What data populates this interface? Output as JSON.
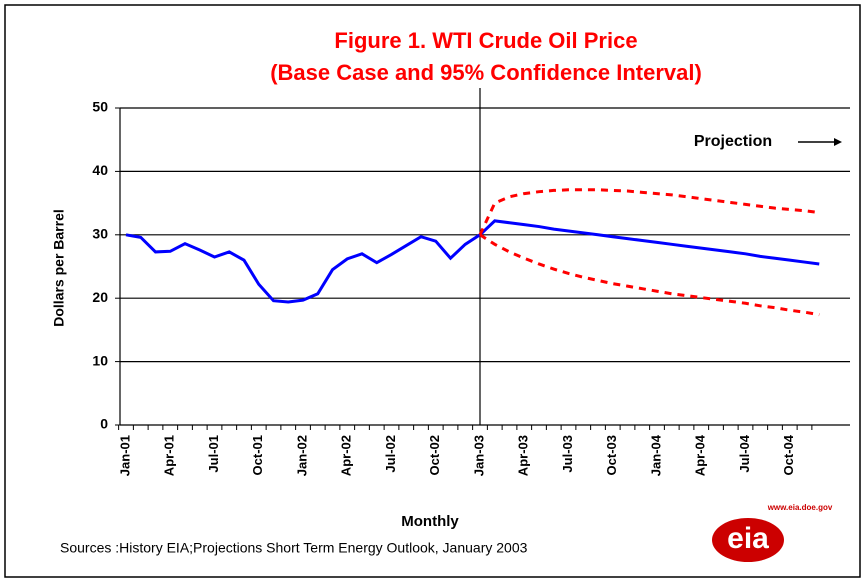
{
  "chart_data": {
    "type": "line",
    "title": "Figure 1. WTI Crude Oil Price",
    "subtitle": "(Base Case and 95% Confidence Interval)",
    "y_label": "Dollars per Barrel",
    "x_label": "Monthly",
    "annotation": "Projection",
    "source": "Sources :History EIA;Projections  Short Term Energy Outlook, January 2003",
    "logo_url": "www.eia.doe.gov",
    "logo": "eia",
    "categories": [
      "Jan-01",
      null,
      null,
      "Apr-01",
      null,
      null,
      "Jul-01",
      null,
      null,
      "Oct-01",
      null,
      null,
      "Jan-02",
      null,
      null,
      "Apr-02",
      null,
      null,
      "Jul-02",
      null,
      null,
      "Oct-02",
      null,
      null,
      "Jan-03",
      null,
      null,
      "Apr-03",
      null,
      null,
      "Jul-03",
      null,
      null,
      "Oct-03",
      null,
      null,
      "Jan-04",
      null,
      null,
      "Apr-04",
      null,
      null,
      "Jul-04",
      null,
      null,
      "Oct-04",
      null,
      null
    ],
    "series": [
      {
        "color": "#0000ff",
        "dash": false,
        "values": [
          30,
          29.6,
          27.3,
          27.4,
          28.6,
          27.6,
          26.5,
          27.3,
          26,
          22.2,
          19.6,
          19.4,
          19.7,
          20.7,
          24.5,
          26.2,
          27,
          25.6,
          26.9,
          28.3,
          29.7,
          29,
          26.3,
          28.5,
          30,
          null,
          null,
          null,
          null,
          null,
          null,
          null,
          null,
          null,
          null,
          null,
          null,
          null,
          null,
          null,
          null,
          null,
          null,
          null,
          null,
          null,
          null,
          null
        ]
      },
      {
        "color": "#0000ff",
        "dash": false,
        "values": [
          null,
          null,
          null,
          null,
          null,
          null,
          null,
          null,
          null,
          null,
          null,
          null,
          null,
          null,
          null,
          null,
          null,
          null,
          null,
          null,
          null,
          null,
          null,
          null,
          30,
          32.2,
          31.9,
          31.6,
          31.3,
          30.9,
          30.6,
          30.3,
          30,
          29.7,
          29.4,
          29.1,
          28.8,
          28.5,
          28.2,
          27.9,
          27.6,
          27.3,
          27,
          26.6,
          26.3,
          26,
          25.7,
          25.4
        ]
      },
      {
        "color": "#ff0000",
        "dash": true,
        "values": [
          null,
          null,
          null,
          null,
          null,
          null,
          null,
          null,
          null,
          null,
          null,
          null,
          null,
          null,
          null,
          null,
          null,
          null,
          null,
          null,
          null,
          null,
          null,
          null,
          30,
          35,
          36,
          36.5,
          36.8,
          37,
          37.1,
          37.1,
          37.1,
          37,
          36.9,
          36.7,
          36.5,
          36.3,
          36,
          35.7,
          35.4,
          35.1,
          34.8,
          34.5,
          34.2,
          34,
          33.8,
          33.5
        ]
      },
      {
        "color": "#ff0000",
        "dash": true,
        "values": [
          null,
          null,
          null,
          null,
          null,
          null,
          null,
          null,
          null,
          null,
          null,
          null,
          null,
          null,
          null,
          null,
          null,
          null,
          null,
          null,
          null,
          null,
          null,
          null,
          30,
          28.5,
          27.3,
          26.3,
          25.4,
          24.6,
          23.9,
          23.3,
          22.8,
          22.3,
          21.9,
          21.5,
          21.1,
          20.7,
          20.4,
          20.1,
          19.8,
          19.5,
          19.2,
          18.8,
          18.5,
          18.1,
          17.8,
          17.4
        ]
      }
    ],
    "ylim": [
      0,
      50
    ],
    "yticks": [
      0,
      10,
      20,
      30,
      40,
      50
    ],
    "grid": true
  }
}
